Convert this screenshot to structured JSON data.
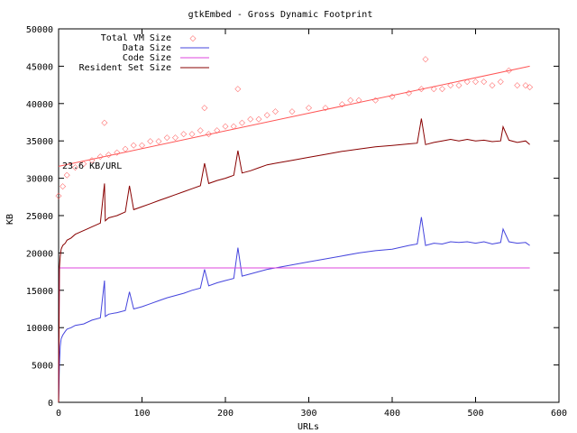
{
  "chart_data": {
    "type": "line",
    "title": "gtkEmbed - Gross Dynamic Footprint",
    "xlabel": "URLs",
    "ylabel": "KB",
    "xlim": [
      0,
      600
    ],
    "ylim": [
      0,
      50000
    ],
    "x_ticks": [
      0,
      100,
      200,
      300,
      400,
      500,
      600
    ],
    "y_ticks": [
      0,
      5000,
      10000,
      15000,
      20000,
      25000,
      30000,
      35000,
      40000,
      45000,
      50000
    ],
    "legend_position": "top-left",
    "grid": false,
    "annotation": "23.6 KB/URL",
    "colors": {
      "total_vm": "#ff5555",
      "data": "#4444dd",
      "code": "#dd44dd",
      "resident": "#880000"
    },
    "series": [
      {
        "name": "Total VM Size",
        "style": "points",
        "x": [
          0,
          5,
          10,
          20,
          30,
          40,
          50,
          55,
          60,
          70,
          80,
          90,
          100,
          110,
          120,
          130,
          140,
          150,
          160,
          170,
          175,
          180,
          190,
          200,
          210,
          215,
          220,
          230,
          240,
          250,
          260,
          280,
          300,
          320,
          340,
          350,
          360,
          380,
          400,
          420,
          435,
          440,
          450,
          460,
          470,
          480,
          490,
          500,
          510,
          520,
          530,
          540,
          550,
          560,
          565
        ],
        "y": [
          27700,
          29000,
          30500,
          31500,
          32000,
          32500,
          33000,
          37500,
          33200,
          33500,
          34000,
          34500,
          34500,
          35000,
          35000,
          35500,
          35500,
          36000,
          36000,
          36500,
          39500,
          36000,
          36500,
          37000,
          37000,
          42000,
          37500,
          38000,
          38000,
          38500,
          39000,
          39000,
          39500,
          39500,
          40000,
          40500,
          40500,
          40500,
          41000,
          41500,
          42000,
          46000,
          42000,
          42000,
          42500,
          42500,
          43000,
          43000,
          43000,
          42500,
          43000,
          44500,
          42500,
          42500,
          42300
        ]
      },
      {
        "name": "Data Size",
        "style": "line",
        "x": [
          0,
          1,
          2,
          3,
          5,
          8,
          10,
          15,
          20,
          30,
          40,
          50,
          55,
          56,
          60,
          70,
          80,
          85,
          90,
          100,
          110,
          120,
          130,
          140,
          150,
          160,
          170,
          175,
          180,
          190,
          200,
          210,
          215,
          220,
          230,
          240,
          250,
          260,
          280,
          300,
          320,
          340,
          360,
          380,
          400,
          420,
          430,
          435,
          440,
          450,
          460,
          470,
          480,
          490,
          500,
          510,
          520,
          530,
          533,
          540,
          550,
          560,
          565
        ],
        "y": [
          0,
          5000,
          7500,
          8500,
          9000,
          9500,
          9800,
          10000,
          10300,
          10500,
          11000,
          11300,
          16300,
          11500,
          11800,
          12000,
          12300,
          14800,
          12500,
          12800,
          13200,
          13600,
          14000,
          14300,
          14600,
          15000,
          15300,
          17800,
          15600,
          16000,
          16300,
          16600,
          20700,
          16900,
          17200,
          17500,
          17800,
          18000,
          18400,
          18800,
          19200,
          19600,
          20000,
          20300,
          20500,
          21000,
          21200,
          24800,
          21000,
          21300,
          21200,
          21500,
          21400,
          21500,
          21300,
          21500,
          21200,
          21400,
          23200,
          21500,
          21300,
          21400,
          21000
        ]
      },
      {
        "name": "Code Size",
        "style": "line",
        "x": [
          0,
          1,
          565
        ],
        "y": [
          0,
          18000,
          18000
        ]
      },
      {
        "name": "Resident Set Size",
        "style": "line",
        "x": [
          0,
          1,
          2,
          3,
          5,
          8,
          10,
          15,
          20,
          30,
          40,
          50,
          55,
          56,
          60,
          70,
          80,
          85,
          90,
          100,
          110,
          120,
          130,
          140,
          150,
          160,
          170,
          175,
          180,
          190,
          200,
          210,
          215,
          220,
          230,
          240,
          250,
          260,
          280,
          300,
          320,
          340,
          360,
          380,
          400,
          420,
          430,
          435,
          440,
          450,
          460,
          470,
          480,
          490,
          500,
          510,
          520,
          530,
          533,
          540,
          550,
          560,
          565
        ],
        "y": [
          0,
          18000,
          19500,
          20500,
          21000,
          21300,
          21700,
          22000,
          22500,
          23000,
          23500,
          24000,
          29300,
          24300,
          24700,
          25000,
          25500,
          29000,
          25800,
          26200,
          26600,
          27000,
          27400,
          27800,
          28200,
          28600,
          29000,
          32000,
          29300,
          29700,
          30000,
          30400,
          33700,
          30700,
          31000,
          31400,
          31800,
          32000,
          32400,
          32800,
          33200,
          33600,
          33900,
          34200,
          34400,
          34600,
          34700,
          38000,
          34500,
          34800,
          35000,
          35200,
          35000,
          35200,
          35000,
          35100,
          34900,
          35000,
          36900,
          35100,
          34800,
          35000,
          34500
        ]
      },
      {
        "style": "fit-line",
        "x": [
          0,
          565
        ],
        "y": [
          31600,
          45000
        ]
      }
    ]
  }
}
